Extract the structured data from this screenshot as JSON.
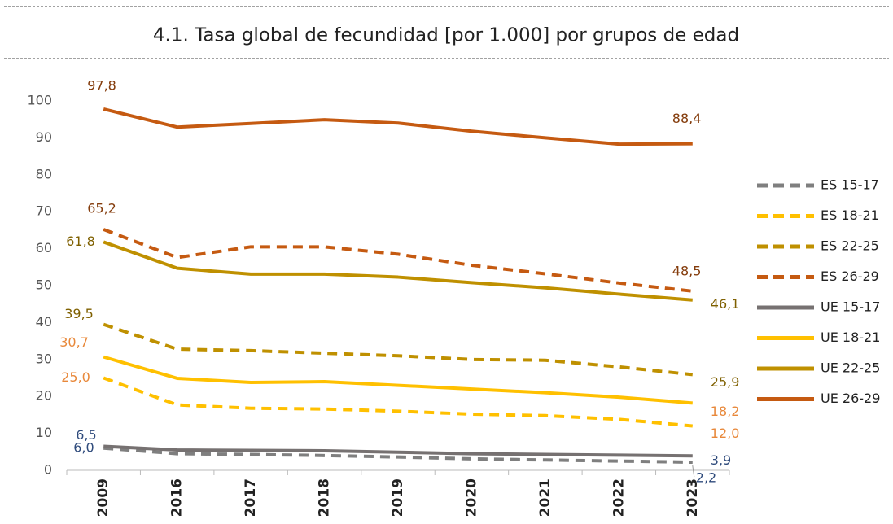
{
  "chart_data": {
    "type": "line",
    "title": "4.1. Tasa global de fecundidad [por 1.000] por grupos de edad",
    "categories": [
      "2009",
      "2016",
      "2017",
      "2018",
      "2019",
      "2020",
      "2021",
      "2022",
      "2023"
    ],
    "ylim": [
      0,
      100
    ],
    "yticks": [
      0,
      10,
      20,
      30,
      40,
      50,
      60,
      70,
      80,
      90,
      100
    ],
    "grid": false,
    "legend": "right",
    "series": [
      {
        "name": "ES 15-17",
        "color": "#7f7f7f",
        "dash": true,
        "label_color": "#2f4b7c",
        "values": [
          6.0,
          4.5,
          4.3,
          4.0,
          3.6,
          3.1,
          2.8,
          2.5,
          2.2
        ],
        "value_labels": [
          "6,0",
          null,
          null,
          null,
          null,
          null,
          null,
          null,
          "2,2"
        ]
      },
      {
        "name": "ES 18-21",
        "color": "#ffc000",
        "dash": true,
        "label_color": "#e8883a",
        "values": [
          25.0,
          17.7,
          16.8,
          16.6,
          16.0,
          15.2,
          14.8,
          13.8,
          12.0
        ],
        "value_labels": [
          "25,0",
          null,
          null,
          null,
          null,
          null,
          null,
          null,
          "12,0"
        ]
      },
      {
        "name": "ES 22-25",
        "color": "#bf9000",
        "dash": true,
        "label_color": "#7f6000",
        "values": [
          39.5,
          32.8,
          32.4,
          31.7,
          31.0,
          30.0,
          29.8,
          28.0,
          25.9
        ],
        "value_labels": [
          "39,5",
          null,
          null,
          null,
          null,
          null,
          null,
          null,
          "25,9"
        ]
      },
      {
        "name": "ES 26-29",
        "color": "#c55a11",
        "dash": true,
        "label_color": "#843c0c",
        "values": [
          65.2,
          57.6,
          60.5,
          60.5,
          58.5,
          55.5,
          53.2,
          50.7,
          48.5
        ],
        "value_labels": [
          "65,2",
          null,
          null,
          null,
          null,
          null,
          null,
          null,
          "48,5"
        ]
      },
      {
        "name": "UE 15-17",
        "color": "#767171",
        "dash": false,
        "label_color": "#2f4b7c",
        "values": [
          6.5,
          5.5,
          5.4,
          5.3,
          4.9,
          4.5,
          4.3,
          4.1,
          3.9
        ],
        "value_labels": [
          "6,5",
          null,
          null,
          null,
          null,
          null,
          null,
          null,
          "3,9"
        ]
      },
      {
        "name": "UE 18-21",
        "color": "#ffc000",
        "dash": false,
        "label_color": "#e8883a",
        "values": [
          30.7,
          24.9,
          23.8,
          24.0,
          23.0,
          22.0,
          21.0,
          19.8,
          18.2
        ],
        "value_labels": [
          "30,7",
          null,
          null,
          null,
          null,
          null,
          null,
          null,
          "18,2"
        ]
      },
      {
        "name": "UE 22-25",
        "color": "#bf9000",
        "dash": false,
        "label_color": "#7f6000",
        "values": [
          61.8,
          54.7,
          53.1,
          53.1,
          52.3,
          50.8,
          49.4,
          47.7,
          46.1
        ],
        "value_labels": [
          "61,8",
          null,
          null,
          null,
          null,
          null,
          null,
          null,
          "46,1"
        ]
      },
      {
        "name": "UE 26-29",
        "color": "#c55a11",
        "dash": false,
        "label_color": "#843c0c",
        "values": [
          97.8,
          92.9,
          93.9,
          94.9,
          94.0,
          91.8,
          90.0,
          88.3,
          88.4
        ],
        "value_labels": [
          "97,8",
          null,
          null,
          null,
          null,
          null,
          null,
          null,
          "88,4"
        ]
      }
    ]
  }
}
